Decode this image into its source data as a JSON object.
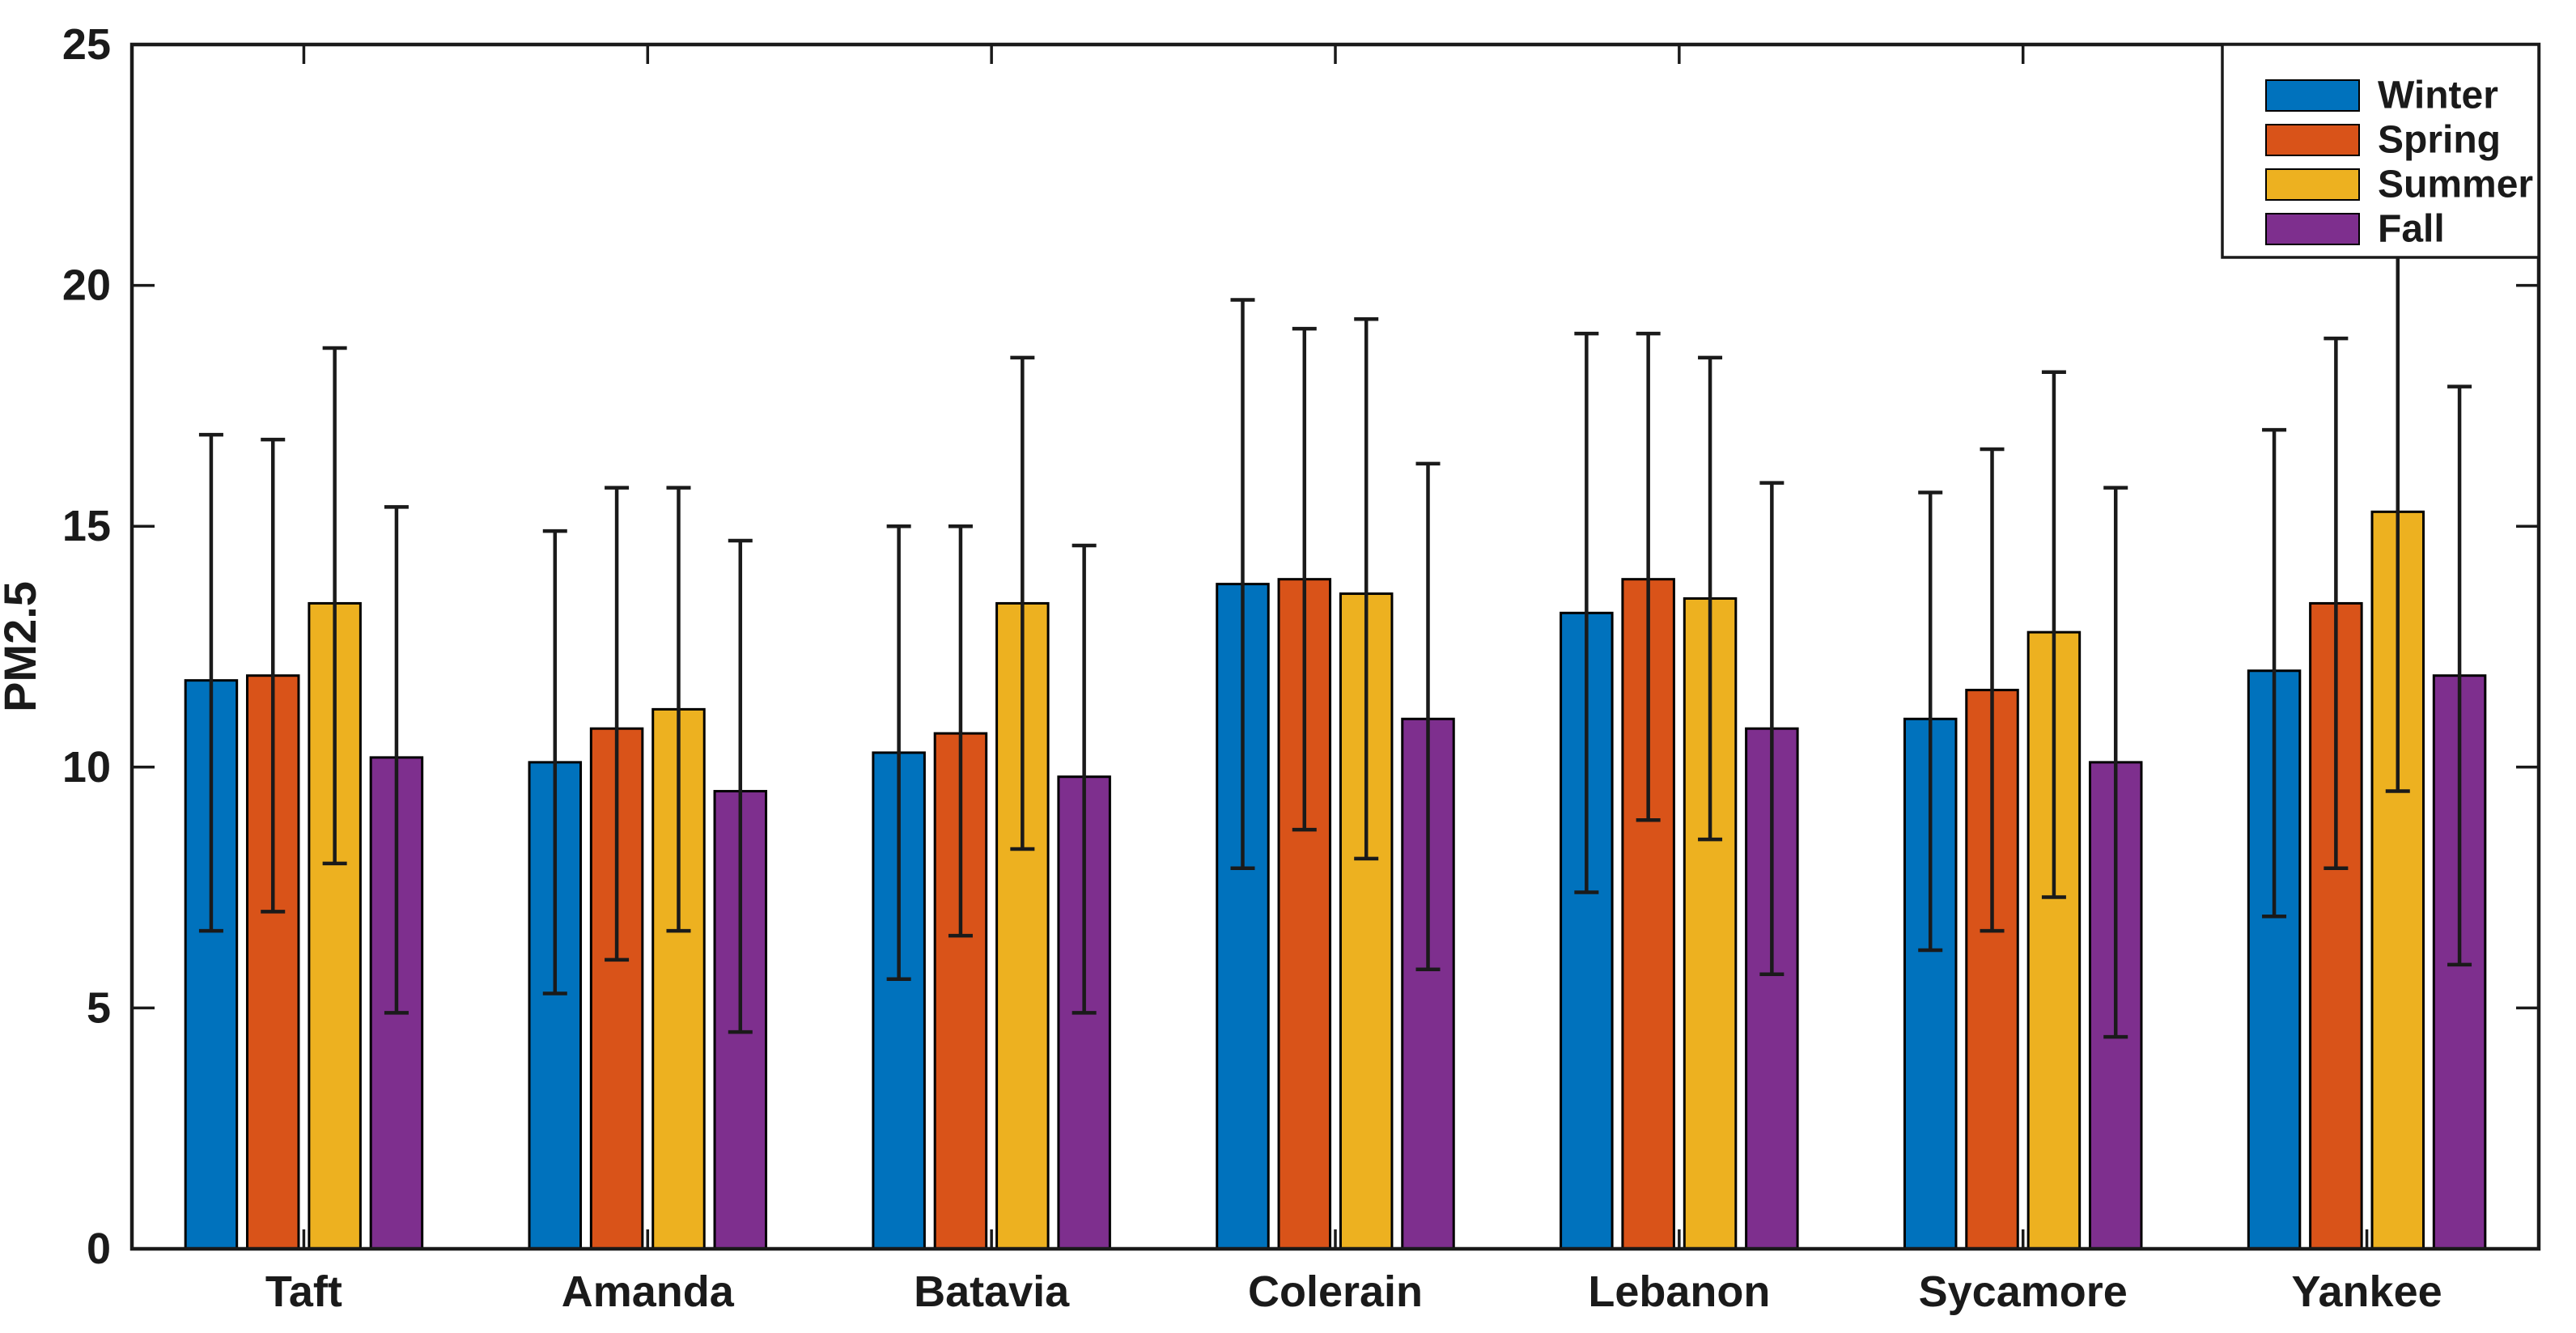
{
  "chart_data": {
    "type": "bar",
    "title": "",
    "ylabel": "PM2.5",
    "xlabel": "",
    "ylim": [
      0,
      25
    ],
    "yticks": [
      0,
      5,
      10,
      15,
      20,
      25
    ],
    "grid": false,
    "background": "#ffffff",
    "axis_color": "#1a1a1a",
    "bar_edge_color": "#000000",
    "error_bar_color": "#1a1a1a",
    "legend_position": "top-right",
    "categories": [
      "Taft",
      "Amanda",
      "Batavia",
      "Colerain",
      "Lebanon",
      "Sycamore",
      "Yankee"
    ],
    "series": [
      {
        "name": "Winter",
        "color": "#0072BD",
        "values": [
          11.8,
          10.1,
          10.3,
          13.8,
          13.2,
          11.0,
          12.0
        ],
        "err_low": [
          6.6,
          5.3,
          5.6,
          7.9,
          7.4,
          6.2,
          6.9
        ],
        "err_high": [
          16.9,
          14.9,
          15.0,
          19.7,
          19.0,
          15.7,
          17.0
        ]
      },
      {
        "name": "Spring",
        "color": "#D95319",
        "values": [
          11.9,
          10.8,
          10.7,
          13.9,
          13.9,
          11.6,
          13.4
        ],
        "err_low": [
          7.0,
          6.0,
          6.5,
          8.7,
          8.9,
          6.6,
          7.9
        ],
        "err_high": [
          16.8,
          15.8,
          15.0,
          19.1,
          19.0,
          16.6,
          18.9
        ]
      },
      {
        "name": "Summer",
        "color": "#EDB120",
        "values": [
          13.4,
          11.2,
          13.4,
          13.6,
          13.5,
          12.8,
          15.3
        ],
        "err_low": [
          8.0,
          6.6,
          8.3,
          8.1,
          8.5,
          7.3,
          9.5
        ],
        "err_high": [
          18.7,
          15.8,
          18.5,
          19.3,
          18.5,
          18.2,
          20.6
        ]
      },
      {
        "name": "Fall",
        "color": "#7E2F8E",
        "values": [
          10.2,
          9.5,
          9.8,
          11.0,
          10.8,
          10.1,
          11.9
        ],
        "err_low": [
          4.9,
          4.5,
          4.9,
          5.8,
          5.7,
          4.4,
          5.9
        ],
        "err_high": [
          15.4,
          14.7,
          14.6,
          16.3,
          15.9,
          15.8,
          17.9
        ]
      }
    ]
  }
}
